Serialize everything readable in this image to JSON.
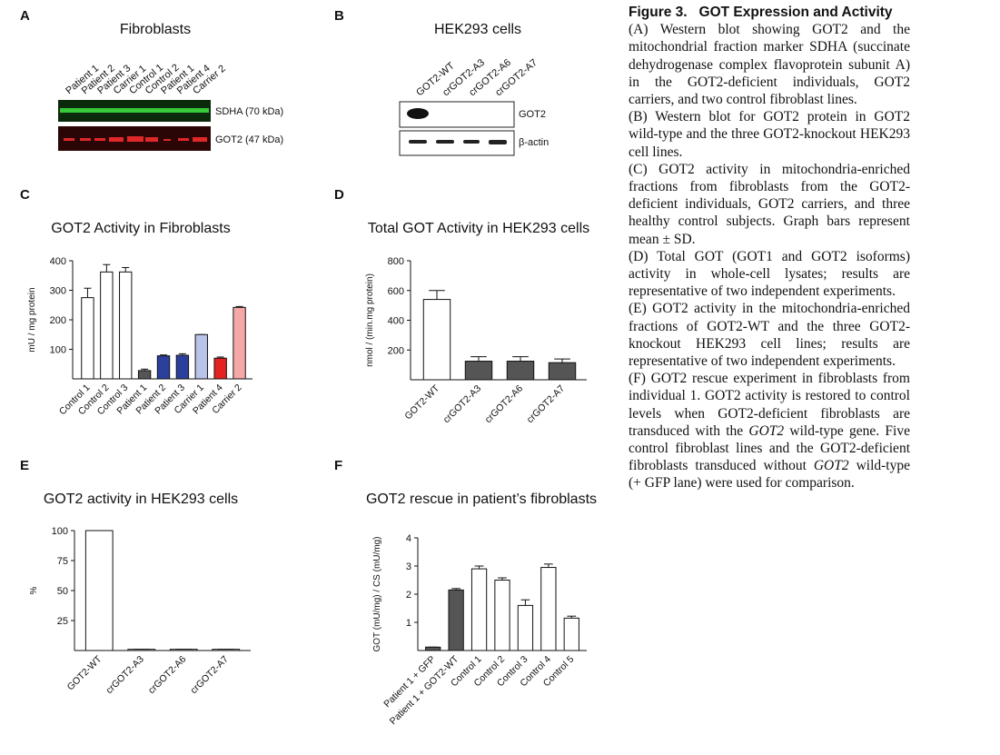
{
  "figure": {
    "panel_labels": [
      "A",
      "B",
      "C",
      "D",
      "E",
      "F"
    ],
    "blot_a": {
      "title": "Fibroblasts",
      "lanes": [
        "Patient 1",
        "Patient 2",
        "Patient 3",
        "Carrier 1",
        "Control 1",
        "Control 2",
        "Patient 1",
        "Patient 4",
        "Carrier 2"
      ],
      "bands": [
        "SDHA (70 kDa)",
        "GOT2 (47 kDa)"
      ]
    },
    "blot_b": {
      "title": "HEK293 cells",
      "lanes": [
        "GOT2-WT",
        "crGOT2-A3",
        "crGOT2-A6",
        "crGOT2-A7"
      ],
      "bands": [
        "GOT2",
        "β-actin"
      ]
    },
    "caption": {
      "title": "Figure 3.   GOT Expression and Activity",
      "paragraphs": [
        [
          {
            "text": "(A) Western blot showing GOT2 and the mitochondrial fraction marker SDHA (succinate dehydrogenase complex flavoprotein subunit A) in the GOT2-deficient individuals, GOT2 carriers, and two control fibroblast lines."
          }
        ],
        [
          {
            "text": "(B) Western blot for GOT2 protein in GOT2 wild-type and the three GOT2-knockout HEK293 cell lines."
          }
        ],
        [
          {
            "text": "(C) GOT2 activity in mitochondria-enriched fractions from fibroblasts from the GOT2-deficient individuals, GOT2 carriers, and three healthy control subjects. Graph bars represent mean ± SD."
          }
        ],
        [
          {
            "text": "(D) Total GOT (GOT1 and GOT2 isoforms) activity in whole-cell lysates; results are representative of two independent experiments."
          }
        ],
        [
          {
            "text": "(E) GOT2 activity in the mitochondria-enriched fractions of GOT2-WT and the three GOT2-knockout HEK293 cell lines; results are representative of two independent experiments."
          }
        ],
        [
          {
            "text": "(F) GOT2 rescue experiment in fibroblasts from individual 1. GOT2 activity is restored to control levels when GOT2-deficient fibroblasts are transduced with the "
          },
          {
            "text": "GOT2",
            "italic": true
          },
          {
            "text": " wild-type gene. Five control fibroblast lines and the GOT2-deficient fibroblasts transduced without "
          },
          {
            "text": "GOT2",
            "italic": true
          },
          {
            "text": " wild-type (+ GFP lane) were used for comparison."
          }
        ]
      ]
    }
  },
  "chart_data": [
    {
      "type": "bar",
      "title": "GOT2 Activity in Fibroblasts",
      "y_label": "mU / mg protein",
      "categories": [
        "Control 1",
        "Control 2",
        "Control 3",
        "Patient 1",
        "Patient 2",
        "Patient 3",
        "Carrier 1",
        "Patient 4",
        "Carrier 2"
      ],
      "values": [
        275,
        362,
        362,
        28,
        78,
        80,
        150,
        70,
        242
      ],
      "errors": [
        32,
        25,
        15,
        5,
        3,
        5,
        0,
        4,
        3
      ],
      "colors": [
        "#ffffff",
        "#ffffff",
        "#ffffff",
        "#555555",
        "#2b3f9c",
        "#2b3f9c",
        "#b9c2e8",
        "#e52222",
        "#f6a8a8"
      ],
      "ylim": [
        0,
        400
      ],
      "yticks": [
        100,
        200,
        300,
        400
      ]
    },
    {
      "type": "bar",
      "title": "Total GOT Activity in HEK293 cells",
      "y_label": "nmol / (min.mg protein)",
      "categories": [
        "GOT2-WT",
        "crGOT2-A3",
        "crGOT2-A6",
        "crGOT2-A7"
      ],
      "values": [
        540,
        125,
        125,
        115
      ],
      "errors": [
        60,
        30,
        30,
        25
      ],
      "colors": [
        "#ffffff",
        "#555555",
        "#555555",
        "#555555"
      ],
      "ylim": [
        0,
        800
      ],
      "yticks": [
        200,
        400,
        600,
        800
      ]
    },
    {
      "type": "bar",
      "title": "GOT2 activity in HEK293 cells",
      "y_label": "%",
      "categories": [
        "GOT2-WT",
        "crGOT2-A3",
        "crGOT2-A6",
        "crGOT2-A7"
      ],
      "values": [
        100,
        1,
        1,
        1
      ],
      "errors": [
        0,
        0,
        0,
        0
      ],
      "colors": [
        "#ffffff",
        "#ffffff",
        "#ffffff",
        "#ffffff"
      ],
      "ylim": [
        0,
        100
      ],
      "yticks": [
        25,
        50,
        75,
        100
      ]
    },
    {
      "type": "bar",
      "title": "GOT2 rescue in patient’s fibroblasts",
      "y_label": "GOT (mU/mg) / CS (mU/mg)",
      "categories": [
        "Patient 1 + GFP",
        "Patient 1 + GOT2-WT",
        "Control 1",
        "Control 2",
        "Control 3",
        "Control 4",
        "Control 5"
      ],
      "values": [
        0.12,
        2.15,
        2.9,
        2.5,
        1.6,
        2.95,
        1.15
      ],
      "errors": [
        0,
        0.05,
        0.1,
        0.08,
        0.2,
        0.12,
        0.07
      ],
      "colors": [
        "#555555",
        "#555555",
        "#ffffff",
        "#ffffff",
        "#ffffff",
        "#ffffff",
        "#ffffff"
      ],
      "ylim": [
        0,
        4
      ],
      "yticks": [
        1,
        2,
        3,
        4
      ]
    }
  ]
}
